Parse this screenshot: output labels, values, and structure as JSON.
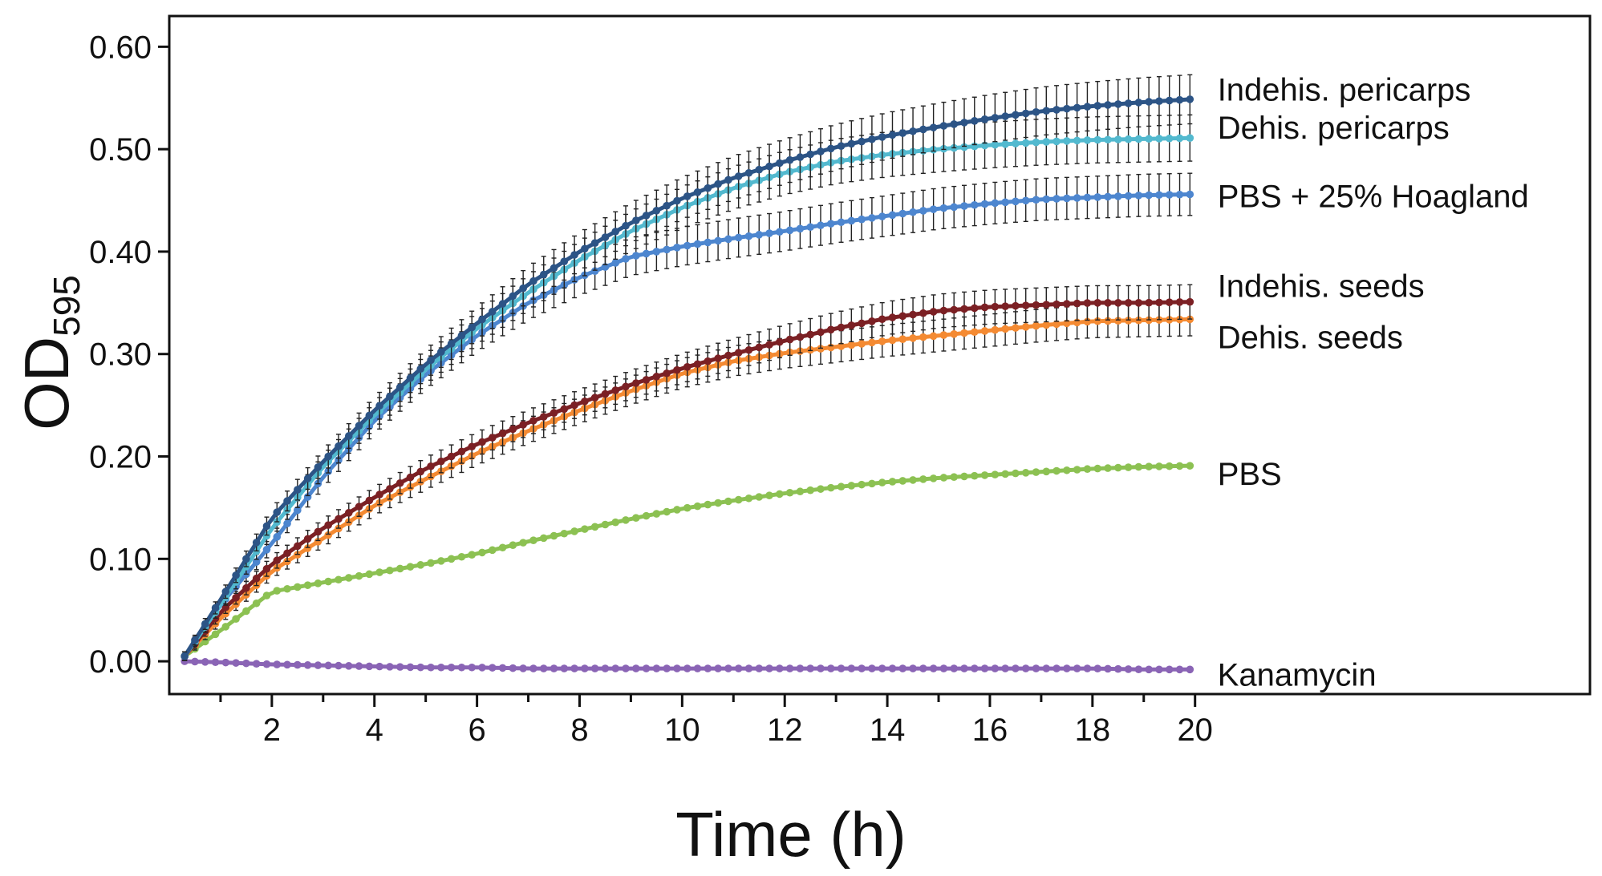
{
  "chart_data": {
    "type": "line",
    "title": "",
    "xlabel": "Time (h)",
    "ylabel_main": "OD",
    "ylabel_sub": "595",
    "xlim": [
      0,
      27.7
    ],
    "ylim": [
      -0.032,
      0.63
    ],
    "xticks": [
      2,
      4,
      6,
      8,
      10,
      12,
      14,
      16,
      18,
      20
    ],
    "yticks": [
      0.0,
      0.1,
      0.2,
      0.3,
      0.4,
      0.5,
      0.6
    ],
    "ytick_labels": [
      "0.00",
      "0.10",
      "0.20",
      "0.30",
      "0.40",
      "0.50",
      "0.60"
    ],
    "grid": false,
    "legend": "inline labels at right end of each series",
    "x": [
      0.3,
      1,
      2,
      3,
      4,
      5,
      6,
      7,
      8,
      9,
      10,
      11,
      12,
      13,
      14,
      15,
      16,
      17,
      18,
      19,
      20
    ],
    "series": [
      {
        "name": "Indehis. pericarps",
        "color": "#2c5486",
        "error_bars": true,
        "values": [
          0.005,
          0.06,
          0.14,
          0.195,
          0.245,
          0.29,
          0.33,
          0.368,
          0.4,
          0.428,
          0.452,
          0.472,
          0.488,
          0.502,
          0.513,
          0.522,
          0.53,
          0.537,
          0.542,
          0.546,
          0.549
        ]
      },
      {
        "name": "Dehis. pericarps",
        "color": "#52b9cf",
        "error_bars": true,
        "values": [
          0.005,
          0.055,
          0.13,
          0.19,
          0.24,
          0.285,
          0.325,
          0.36,
          0.392,
          0.42,
          0.443,
          0.462,
          0.477,
          0.488,
          0.495,
          0.5,
          0.504,
          0.507,
          0.509,
          0.51,
          0.511
        ]
      },
      {
        "name": "PBS + 25% Hoagland",
        "color": "#4d86cf",
        "error_bars": true,
        "values": [
          0.005,
          0.055,
          0.115,
          0.18,
          0.235,
          0.28,
          0.318,
          0.35,
          0.375,
          0.395,
          0.405,
          0.413,
          0.42,
          0.428,
          0.435,
          0.442,
          0.447,
          0.451,
          0.453,
          0.455,
          0.456
        ]
      },
      {
        "name": "Indehis. seeds",
        "color": "#7b2024",
        "error_bars": true,
        "values": [
          0.005,
          0.048,
          0.095,
          0.13,
          0.16,
          0.188,
          0.212,
          0.233,
          0.252,
          0.27,
          0.286,
          0.3,
          0.313,
          0.325,
          0.335,
          0.342,
          0.346,
          0.348,
          0.35,
          0.35,
          0.351
        ]
      },
      {
        "name": "Dehis. seeds",
        "color": "#f48a32",
        "error_bars": true,
        "values": [
          0.005,
          0.042,
          0.088,
          0.12,
          0.152,
          0.178,
          0.203,
          0.225,
          0.245,
          0.264,
          0.281,
          0.293,
          0.301,
          0.307,
          0.313,
          0.318,
          0.323,
          0.328,
          0.332,
          0.333,
          0.334
        ]
      },
      {
        "name": "PBS",
        "color": "#8cc152",
        "error_bars": false,
        "values": [
          0.005,
          0.03,
          0.068,
          0.077,
          0.086,
          0.095,
          0.105,
          0.117,
          0.128,
          0.139,
          0.149,
          0.157,
          0.164,
          0.17,
          0.175,
          0.179,
          0.182,
          0.185,
          0.188,
          0.19,
          0.191
        ]
      },
      {
        "name": "Kanamycin",
        "color": "#8a64b5",
        "error_bars": false,
        "values": [
          0.0,
          -0.001,
          -0.003,
          -0.004,
          -0.005,
          -0.006,
          -0.006,
          -0.007,
          -0.007,
          -0.007,
          -0.007,
          -0.007,
          -0.007,
          -0.007,
          -0.007,
          -0.007,
          -0.007,
          -0.007,
          -0.007,
          -0.008,
          -0.008
        ]
      }
    ]
  }
}
